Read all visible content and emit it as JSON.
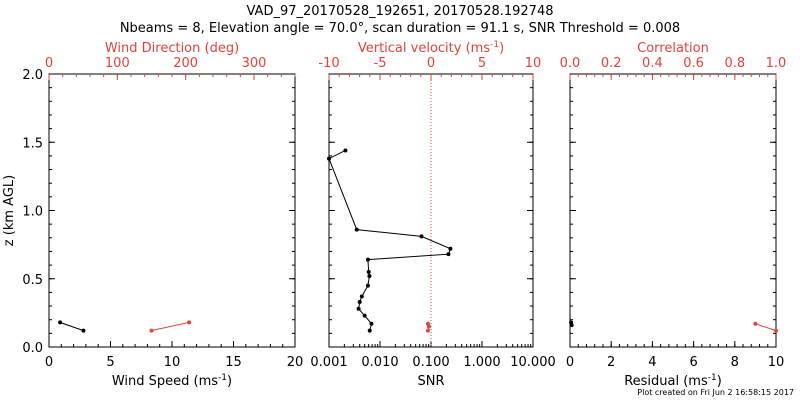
{
  "title_line1": "VAD_97_20170528_192651, 20170528.192748",
  "title_line2": "Nbeams = 8, Elevation angle = 70.0°, scan duration = 91.1 s, SNR Threshold = 0.008",
  "footnote": "Plot created on Fri Jun  2 16:58:15 2017",
  "colors": {
    "primary": "#000000",
    "secondary": "#e0443a"
  },
  "chart_data": [
    {
      "type": "line",
      "ylabel": "z (km AGL)",
      "ylim": [
        0,
        2
      ],
      "yticks": [
        "0.0",
        "0.5",
        "1.0",
        "1.5",
        "2.0"
      ],
      "bottom_axis": {
        "label": "Wind Speed (ms",
        "label_sup": "-1",
        "label_suffix": ")",
        "range": [
          0,
          20
        ],
        "ticks": [
          "0",
          "5",
          "10",
          "15",
          "20"
        ]
      },
      "top_axis": {
        "label": "Wind Direction (deg)",
        "range": [
          0,
          360
        ],
        "ticks": [
          "0",
          "100",
          "200",
          "300"
        ]
      },
      "series": [
        {
          "axis": "bottom",
          "color": "#000000",
          "x": [
            0.9,
            2.8
          ],
          "y": [
            0.18,
            0.12
          ]
        },
        {
          "axis": "top",
          "color": "#e0443a",
          "x": [
            150,
            205
          ],
          "y": [
            0.12,
            0.18
          ]
        }
      ]
    },
    {
      "type": "line",
      "bottom_axis": {
        "label": "SNR",
        "scale": "log",
        "range": [
          0.001,
          10
        ],
        "ticks": [
          "0.001",
          "0.010",
          "0.100",
          "1.000",
          "10.000"
        ]
      },
      "top_axis": {
        "label": "Vertical velocity (ms",
        "label_sup": "-1",
        "label_suffix": ")",
        "range": [
          -10,
          10
        ],
        "ticks": [
          "-10",
          "-5",
          "0",
          "5",
          "10"
        ],
        "zero_line": "dotted"
      },
      "series": [
        {
          "axis": "bottom",
          "color": "#000000",
          "x": [
            0.0021,
            0.001,
            0.0035,
            0.065,
            0.24,
            0.22,
            0.0058,
            0.006,
            0.0062,
            0.0058,
            0.0044,
            0.004,
            0.0038,
            0.005,
            0.0068,
            0.0063
          ],
          "y": [
            1.44,
            1.38,
            0.86,
            0.81,
            0.72,
            0.68,
            0.64,
            0.55,
            0.52,
            0.45,
            0.37,
            0.33,
            0.28,
            0.23,
            0.17,
            0.12
          ]
        },
        {
          "axis": "top",
          "color": "#e0443a",
          "x": [
            -0.3,
            -0.2,
            -0.3
          ],
          "y": [
            0.17,
            0.15,
            0.12
          ]
        }
      ]
    },
    {
      "type": "line",
      "bottom_axis": {
        "label": "Residual (ms",
        "label_sup": "-1",
        "label_suffix": ")",
        "range": [
          0,
          10
        ],
        "ticks": [
          "0",
          "2",
          "4",
          "6",
          "8",
          "10"
        ]
      },
      "top_axis": {
        "label": "Correlation",
        "range": [
          0,
          1
        ],
        "ticks": [
          "0.0",
          "0.2",
          "0.4",
          "0.6",
          "0.8",
          "1.0"
        ]
      },
      "series": [
        {
          "axis": "bottom",
          "color": "#000000",
          "x": [
            0.05,
            0.08
          ],
          "y": [
            0.18,
            0.16
          ]
        },
        {
          "axis": "top",
          "color": "#e0443a",
          "x": [
            0.9,
            1.0
          ],
          "y": [
            0.17,
            0.12
          ]
        }
      ]
    }
  ]
}
